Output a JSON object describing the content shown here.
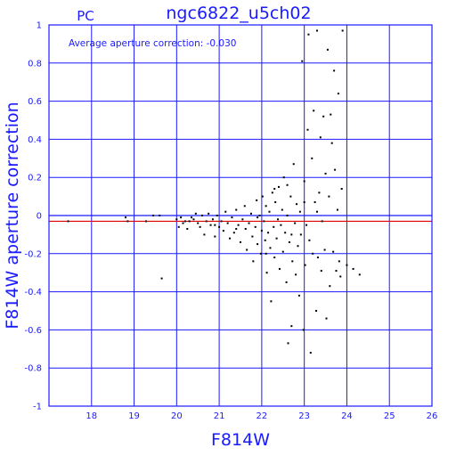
{
  "chart_data": {
    "type": "scatter",
    "title": "ngc6822_u5ch02",
    "corner_label": "PC",
    "xlabel": "F814W",
    "ylabel": "F814W aperture correction",
    "annotation": "Average aperture correction: -0.030",
    "xlim": [
      17,
      26
    ],
    "ylim": [
      -1,
      1
    ],
    "x_ticks": [
      "18",
      "19",
      "20",
      "21",
      "22",
      "23",
      "24",
      "25",
      "26"
    ],
    "y_ticks": [
      "1",
      "0.8",
      "0.6",
      "0.4",
      "0.2",
      "0",
      "-0.2",
      "-0.4",
      "-0.6",
      "-0.8",
      "-1"
    ],
    "grid": true,
    "reference_lines": [
      {
        "y": 0,
        "color": "#1a1aff"
      },
      {
        "y": -0.03,
        "color": "#e00000"
      }
    ],
    "colors": {
      "axis": "#1a1aff",
      "text": "#1a1aff",
      "points": "#000000",
      "average_line": "#e00000"
    },
    "points": [
      [
        17.45,
        -0.03
      ],
      [
        18.8,
        -0.01
      ],
      [
        18.85,
        -0.03
      ],
      [
        19.45,
        0.0
      ],
      [
        19.6,
        0.0
      ],
      [
        19.28,
        -0.03
      ],
      [
        19.65,
        -0.33
      ],
      [
        20.0,
        -0.02
      ],
      [
        20.05,
        -0.06
      ],
      [
        20.1,
        -0.01
      ],
      [
        20.15,
        -0.04
      ],
      [
        20.2,
        -0.03
      ],
      [
        20.25,
        -0.07
      ],
      [
        20.3,
        -0.03
      ],
      [
        20.35,
        -0.01
      ],
      [
        20.4,
        -0.02
      ],
      [
        20.45,
        0.01
      ],
      [
        20.5,
        -0.04
      ],
      [
        20.55,
        -0.06
      ],
      [
        20.6,
        0.0
      ],
      [
        20.65,
        -0.1
      ],
      [
        20.7,
        -0.03
      ],
      [
        20.75,
        0.01
      ],
      [
        20.8,
        -0.05
      ],
      [
        20.85,
        -0.02
      ],
      [
        20.9,
        -0.11
      ],
      [
        20.95,
        0.0
      ],
      [
        21.0,
        -0.06
      ],
      [
        21.05,
        -0.03
      ],
      [
        21.1,
        -0.08
      ],
      [
        21.15,
        0.02
      ],
      [
        21.2,
        -0.04
      ],
      [
        21.25,
        -0.12
      ],
      [
        21.3,
        -0.01
      ],
      [
        21.35,
        -0.09
      ],
      [
        21.4,
        0.03
      ],
      [
        21.45,
        -0.05
      ],
      [
        21.5,
        -0.14
      ],
      [
        21.55,
        -0.02
      ],
      [
        21.6,
        0.05
      ],
      [
        21.62,
        -0.07
      ],
      [
        21.65,
        -0.18
      ],
      [
        21.7,
        -0.04
      ],
      [
        21.75,
        0.01
      ],
      [
        21.78,
        -0.11
      ],
      [
        21.8,
        -0.24
      ],
      [
        21.85,
        -0.06
      ],
      [
        21.88,
        0.08
      ],
      [
        21.9,
        -0.15
      ],
      [
        21.95,
        0.0
      ],
      [
        21.98,
        -0.2
      ],
      [
        22.0,
        -0.08
      ],
      [
        22.02,
        0.1
      ],
      [
        22.05,
        -0.03
      ],
      [
        22.08,
        -0.13
      ],
      [
        22.1,
        0.05
      ],
      [
        22.12,
        -0.3
      ],
      [
        22.15,
        -0.09
      ],
      [
        22.18,
        0.02
      ],
      [
        22.2,
        -0.17
      ],
      [
        22.22,
        -0.45
      ],
      [
        22.25,
        0.12
      ],
      [
        22.28,
        -0.06
      ],
      [
        22.3,
        -0.22
      ],
      [
        22.32,
        0.07
      ],
      [
        22.35,
        -0.12
      ],
      [
        22.38,
        -0.02
      ],
      [
        22.4,
        0.15
      ],
      [
        22.42,
        -0.28
      ],
      [
        22.45,
        -0.05
      ],
      [
        22.48,
        0.03
      ],
      [
        22.5,
        -0.19
      ],
      [
        22.52,
        0.2
      ],
      [
        22.55,
        -0.09
      ],
      [
        22.58,
        -0.35
      ],
      [
        22.6,
        0.0
      ],
      [
        22.62,
        -0.67
      ],
      [
        22.65,
        -0.14
      ],
      [
        22.68,
        0.1
      ],
      [
        22.7,
        -0.58
      ],
      [
        22.72,
        -0.24
      ],
      [
        22.75,
        0.27
      ],
      [
        22.78,
        -0.04
      ],
      [
        22.8,
        -0.31
      ],
      [
        22.82,
        0.06
      ],
      [
        22.85,
        -0.16
      ],
      [
        22.88,
        -0.42
      ],
      [
        22.9,
        0.02
      ],
      [
        22.92,
        -0.1
      ],
      [
        22.95,
        0.81
      ],
      [
        22.98,
        -0.6
      ],
      [
        23.0,
        0.18
      ],
      [
        23.02,
        -0.26
      ],
      [
        23.05,
        -0.05
      ],
      [
        23.08,
        0.45
      ],
      [
        23.1,
        0.95
      ],
      [
        23.12,
        -0.13
      ],
      [
        23.15,
        -0.72
      ],
      [
        23.18,
        0.3
      ],
      [
        23.2,
        -0.2
      ],
      [
        23.22,
        0.55
      ],
      [
        23.25,
        0.07
      ],
      [
        23.28,
        -0.5
      ],
      [
        23.3,
        0.97
      ],
      [
        23.32,
        -0.22
      ],
      [
        23.35,
        0.12
      ],
      [
        23.38,
        0.41
      ],
      [
        23.4,
        -0.29
      ],
      [
        23.42,
        -0.03
      ],
      [
        23.45,
        0.52
      ],
      [
        23.48,
        -0.18
      ],
      [
        23.5,
        0.22
      ],
      [
        23.52,
        -0.54
      ],
      [
        23.55,
        0.87
      ],
      [
        23.58,
        0.1
      ],
      [
        23.6,
        -0.37
      ],
      [
        23.62,
        0.53
      ],
      [
        23.65,
        0.38
      ],
      [
        23.68,
        -0.19
      ],
      [
        23.7,
        0.76
      ],
      [
        23.72,
        0.24
      ],
      [
        23.75,
        -0.29
      ],
      [
        23.78,
        0.03
      ],
      [
        23.8,
        0.64
      ],
      [
        23.82,
        -0.24
      ],
      [
        23.85,
        -0.32
      ],
      [
        23.88,
        0.14
      ],
      [
        23.9,
        0.97
      ],
      [
        24.0,
        -0.26
      ],
      [
        24.15,
        -0.28
      ],
      [
        24.3,
        -0.31
      ],
      [
        22.3,
        0.14
      ],
      [
        21.9,
        -0.01
      ],
      [
        22.6,
        0.16
      ],
      [
        23.0,
        0.07
      ],
      [
        21.4,
        -0.07
      ],
      [
        20.9,
        -0.05
      ],
      [
        22.1,
        -0.2
      ],
      [
        22.7,
        -0.1
      ],
      [
        23.3,
        0.02
      ]
    ]
  }
}
